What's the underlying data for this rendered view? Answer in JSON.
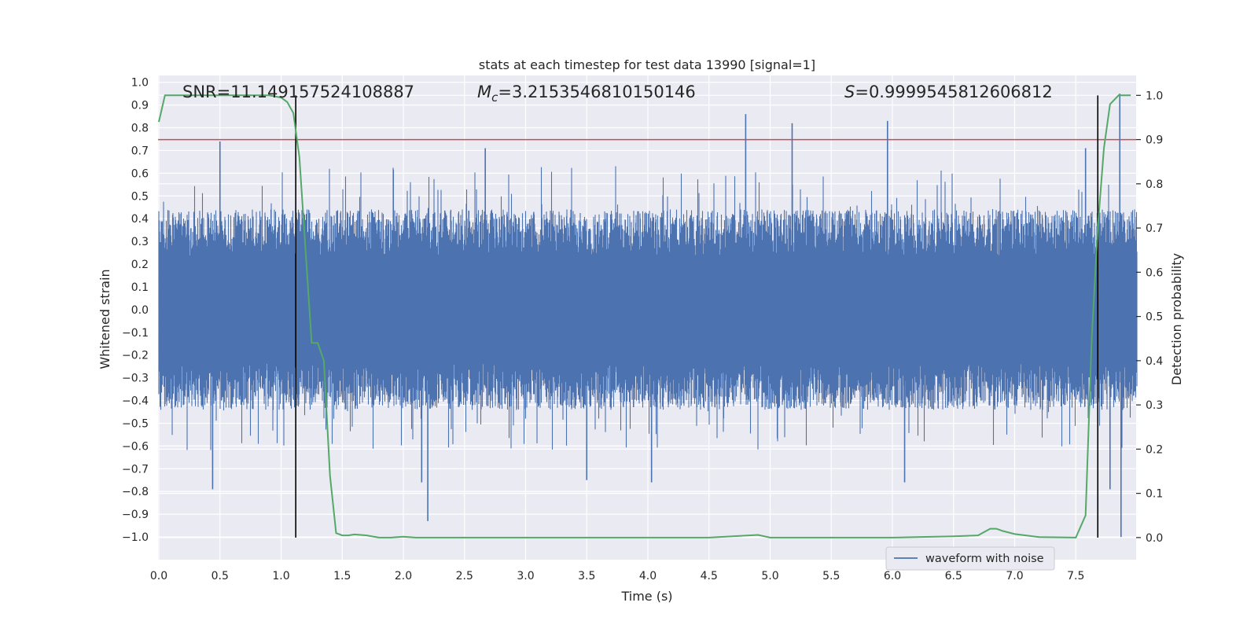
{
  "chart_data": {
    "type": "line",
    "title": "stats at each timestep for test data 13990 [signal=1]",
    "xlabel": "Time (s)",
    "ylabel": "Whitened strain",
    "y2label": "Detection probability",
    "xlim": [
      0.0,
      8.0
    ],
    "ylim": [
      -1.1,
      1.03
    ],
    "y2lim": [
      -0.05,
      1.045
    ],
    "xticks": [
      0.0,
      0.5,
      1.0,
      1.5,
      2.0,
      2.5,
      3.0,
      3.5,
      4.0,
      4.5,
      5.0,
      5.5,
      6.0,
      6.5,
      7.0,
      7.5
    ],
    "xtick_labels": [
      "0.0",
      "0.5",
      "1.0",
      "1.5",
      "2.0",
      "2.5",
      "3.0",
      "3.5",
      "4.0",
      "4.5",
      "5.0",
      "5.5",
      "6.0",
      "6.5",
      "7.0",
      "7.5"
    ],
    "yticks": [
      1.0,
      0.9,
      0.8,
      0.7,
      0.6,
      0.5,
      0.4,
      0.3,
      0.2,
      0.1,
      0.0,
      -0.1,
      -0.2,
      -0.3,
      -0.4,
      -0.5,
      -0.6,
      -0.7,
      -0.8,
      -0.9,
      -1.0
    ],
    "ytick_labels": [
      "1.0",
      "0.9",
      "0.8",
      "0.7",
      "0.6",
      "0.5",
      "0.4",
      "0.3",
      "0.2",
      "0.1",
      "0.0",
      "−0.1",
      "−0.2",
      "−0.3",
      "−0.4",
      "−0.5",
      "−0.6",
      "−0.7",
      "−0.8",
      "−0.9",
      "−1.0"
    ],
    "y2ticks": [
      1.0,
      0.9,
      0.8,
      0.7,
      0.6,
      0.5,
      0.4,
      0.3,
      0.2,
      0.1,
      0.0
    ],
    "y2tick_labels": [
      "1.0",
      "0.9",
      "0.8",
      "0.7",
      "0.6",
      "0.5",
      "0.4",
      "0.3",
      "0.2",
      "0.1",
      "0.0"
    ],
    "grid": true,
    "legend": {
      "label": "waveform with noise",
      "placement": "lower-right"
    },
    "annotations": {
      "snr": "SNR=11.149157524108887",
      "mc_prefix": "M",
      "mc_sub": "c",
      "mc_value": "=3.2153546810150146",
      "s_prefix": "S",
      "s_value": "=0.9999545812606812"
    },
    "threshold": {
      "value": 0.9,
      "axis": "y2",
      "color": "#c44e52"
    },
    "vertical_lines": [
      {
        "x": 1.12,
        "y2_range": [
          0.0,
          1.0
        ],
        "color": "#000000"
      },
      {
        "x": 7.68,
        "y2_range": [
          0.0,
          1.0
        ],
        "color": "#000000"
      }
    ],
    "series": [
      {
        "name": "waveform with noise",
        "axis": "y",
        "color": "#4c72b0",
        "envelope_typical": 0.42,
        "spikes": [
          {
            "x": 0.44,
            "value": -0.79
          },
          {
            "x": 0.5,
            "value": 0.74
          },
          {
            "x": 2.2,
            "value": -0.93
          },
          {
            "x": 2.15,
            "value": -0.76
          },
          {
            "x": 2.67,
            "value": 0.71
          },
          {
            "x": 3.5,
            "value": -0.75
          },
          {
            "x": 4.03,
            "value": -0.76
          },
          {
            "x": 4.8,
            "value": 0.86
          },
          {
            "x": 5.18,
            "value": 0.82
          },
          {
            "x": 5.96,
            "value": 0.83
          },
          {
            "x": 6.1,
            "value": -0.76
          },
          {
            "x": 7.86,
            "value": 0.95
          },
          {
            "x": 7.87,
            "value": -1.0
          },
          {
            "x": 7.78,
            "value": -0.79
          },
          {
            "x": 7.58,
            "value": 0.71
          }
        ]
      },
      {
        "name": "detection probability",
        "axis": "y2",
        "color": "#55a868",
        "x": [
          0.0,
          0.05,
          0.1,
          0.2,
          0.3,
          0.5,
          0.7,
          0.9,
          1.0,
          1.05,
          1.1,
          1.15,
          1.2,
          1.25,
          1.3,
          1.35,
          1.4,
          1.45,
          1.5,
          1.55,
          1.6,
          1.7,
          1.8,
          1.9,
          2.0,
          2.1,
          2.2,
          2.5,
          3.0,
          3.5,
          4.0,
          4.5,
          4.9,
          5.0,
          5.5,
          6.0,
          6.5,
          6.7,
          6.8,
          6.85,
          6.9,
          7.0,
          7.2,
          7.5,
          7.58,
          7.63,
          7.68,
          7.73,
          7.78,
          7.85,
          7.95
        ],
        "values": [
          0.94,
          1.0,
          1.0,
          1.0,
          1.0,
          1.0,
          1.0,
          1.0,
          0.995,
          0.985,
          0.96,
          0.86,
          0.65,
          0.44,
          0.44,
          0.4,
          0.14,
          0.01,
          0.005,
          0.005,
          0.007,
          0.005,
          0.0,
          0.0,
          0.002,
          0.0,
          0.0,
          0.0,
          0.0,
          0.0,
          0.0,
          0.0,
          0.006,
          0.0,
          0.0,
          0.0,
          0.003,
          0.005,
          0.02,
          0.02,
          0.015,
          0.008,
          0.001,
          0.0,
          0.05,
          0.45,
          0.7,
          0.88,
          0.98,
          1.0,
          1.0
        ]
      }
    ]
  }
}
